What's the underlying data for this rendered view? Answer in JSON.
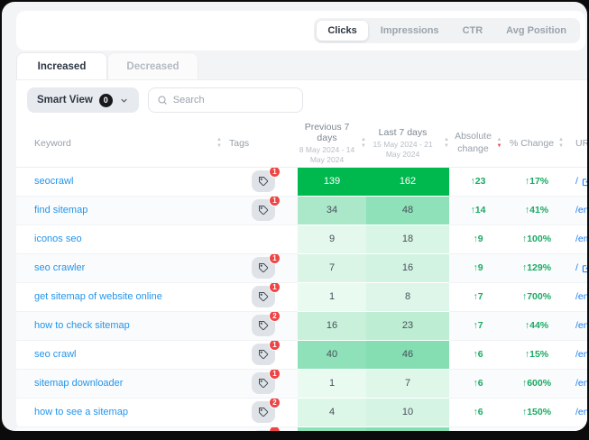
{
  "colors": {
    "accent_green": "#00b94e",
    "change_green": "#1aaa63",
    "keyword_blue": "#2395ec",
    "url_blue": "#1a7df0",
    "badge_red": "#ef4444",
    "sort_active_red": "#e5484d",
    "frame_black": "#0b0b0c"
  },
  "toolbar": {
    "metric_tabs": [
      {
        "label": "Clicks",
        "active": true
      },
      {
        "label": "Impressions",
        "active": false
      },
      {
        "label": "CTR",
        "active": false
      },
      {
        "label": "Avg Position",
        "active": false
      }
    ]
  },
  "view_tabs": [
    {
      "label": "Increased",
      "active": true
    },
    {
      "label": "Decreased",
      "active": false
    }
  ],
  "filters": {
    "smart_view_label": "Smart View",
    "smart_view_count": "0",
    "search_placeholder": "Search"
  },
  "table": {
    "headers": {
      "keyword": "Keyword",
      "tags": "Tags",
      "prev_title": "Previous 7 days",
      "prev_subtitle": "8 May 2024 - 14 May 2024",
      "last_title": "Last 7 days",
      "last_subtitle": "15 May 2024 - 21 May 2024",
      "abs_change": "Absolute change",
      "pct_change": "% Change",
      "url": "URL",
      "sorted_by": "abs_change_desc"
    },
    "rows": [
      {
        "keyword": "seocrawl",
        "tag_count": "1",
        "prev": "139",
        "last": "162",
        "abs": "↑23",
        "pct": "↑17%",
        "url": "/",
        "url_external": true,
        "prev_bg": "#00b94e",
        "last_bg": "#00b94e",
        "hi": true
      },
      {
        "keyword": "find sitemap",
        "tag_count": "1",
        "prev": "34",
        "last": "48",
        "abs": "↑14",
        "pct": "↑41%",
        "url": "/en",
        "url_external": false,
        "prev_bg": "#abe7c9",
        "last_bg": "#8ee1b8",
        "hi": false
      },
      {
        "keyword": "iconos seo",
        "tag_count": null,
        "prev": "9",
        "last": "18",
        "abs": "↑9",
        "pct": "↑100%",
        "url": "/em",
        "url_external": false,
        "prev_bg": "#e4f8ed",
        "last_bg": "#d9f5e5",
        "hi": false
      },
      {
        "keyword": "seo crawler",
        "tag_count": "1",
        "prev": "7",
        "last": "16",
        "abs": "↑9",
        "pct": "↑129%",
        "url": "/",
        "url_external": true,
        "prev_bg": "#daf5e6",
        "last_bg": "#d2f3e1",
        "hi": false
      },
      {
        "keyword": "get sitemap of website online",
        "tag_count": "1",
        "prev": "1",
        "last": "8",
        "abs": "↑7",
        "pct": "↑700%",
        "url": "/en",
        "url_external": false,
        "prev_bg": "#e9faf1",
        "last_bg": "#ddf6e9",
        "hi": false
      },
      {
        "keyword": "how to check sitemap",
        "tag_count": "2",
        "prev": "16",
        "last": "23",
        "abs": "↑7",
        "pct": "↑44%",
        "url": "/en",
        "url_external": false,
        "prev_bg": "#c9f0da",
        "last_bg": "#bdedd2",
        "hi": false
      },
      {
        "keyword": "seo crawl",
        "tag_count": "1",
        "prev": "40",
        "last": "46",
        "abs": "↑6",
        "pct": "↑15%",
        "url": "/en",
        "url_external": false,
        "prev_bg": "#8ee1b8",
        "last_bg": "#84deb2",
        "hi": false
      },
      {
        "keyword": "sitemap downloader",
        "tag_count": "1",
        "prev": "1",
        "last": "7",
        "abs": "↑6",
        "pct": "↑600%",
        "url": "/en",
        "url_external": false,
        "prev_bg": "#e9faf1",
        "last_bg": "#def7e9",
        "hi": false
      },
      {
        "keyword": "how to see a sitemap",
        "tag_count": "2",
        "prev": "4",
        "last": "10",
        "abs": "↑6",
        "pct": "↑150%",
        "url": "/en",
        "url_external": false,
        "prev_bg": "#dcf6e7",
        "last_bg": "#d5f4e3",
        "hi": false
      },
      {
        "keyword": "",
        "tag_count": "",
        "prev": "",
        "last": "",
        "abs": "",
        "pct": "",
        "url": "",
        "url_external": false,
        "prev_bg": "#8ce2b7",
        "last_bg": "#83dfb2",
        "hi": false
      }
    ]
  }
}
